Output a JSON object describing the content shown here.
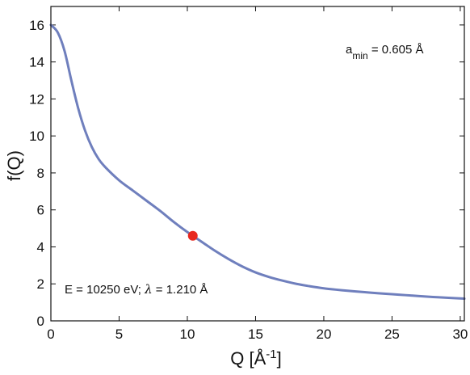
{
  "chart_data": {
    "type": "line",
    "title": "",
    "xlabel": "Q [Å",
    "xlabel_superscript": "-1",
    "xlabel_suffix": "]",
    "ylabel": "f(Q)",
    "xlim": [
      0,
      30.3
    ],
    "ylim": [
      0,
      17
    ],
    "x_ticks": [
      0,
      5,
      10,
      15,
      20,
      25,
      30
    ],
    "y_ticks": [
      0,
      2,
      4,
      6,
      8,
      10,
      12,
      14,
      16
    ],
    "grid": false,
    "legend": "none",
    "series": [
      {
        "color": "#6f7fbd",
        "x": [
          0,
          0.5,
          1,
          1.5,
          2,
          2.5,
          3,
          3.5,
          4,
          5,
          6,
          7,
          8,
          9,
          10,
          11,
          12,
          13,
          14,
          15,
          16,
          17,
          18,
          19,
          20,
          21,
          22,
          23,
          24,
          25,
          26,
          27,
          28,
          29,
          30.3
        ],
        "y": [
          16.0,
          15.6,
          14.6,
          13.0,
          11.5,
          10.3,
          9.4,
          8.75,
          8.3,
          7.6,
          7.05,
          6.5,
          5.95,
          5.35,
          4.8,
          4.3,
          3.8,
          3.35,
          2.95,
          2.62,
          2.37,
          2.17,
          2.0,
          1.87,
          1.76,
          1.68,
          1.61,
          1.55,
          1.49,
          1.44,
          1.39,
          1.34,
          1.29,
          1.25,
          1.2
        ]
      }
    ],
    "marker": {
      "x": 10.4,
      "y": 4.6,
      "color": "#e8281f"
    },
    "annotations": {
      "amin_prefix": "a",
      "amin_subscript": "min",
      "amin_value": " = 0.605 Å",
      "energy_prefix": "E = 10250 eV; ",
      "energy_lambda": "λ",
      "energy_value": " = 1.210 Å"
    }
  }
}
